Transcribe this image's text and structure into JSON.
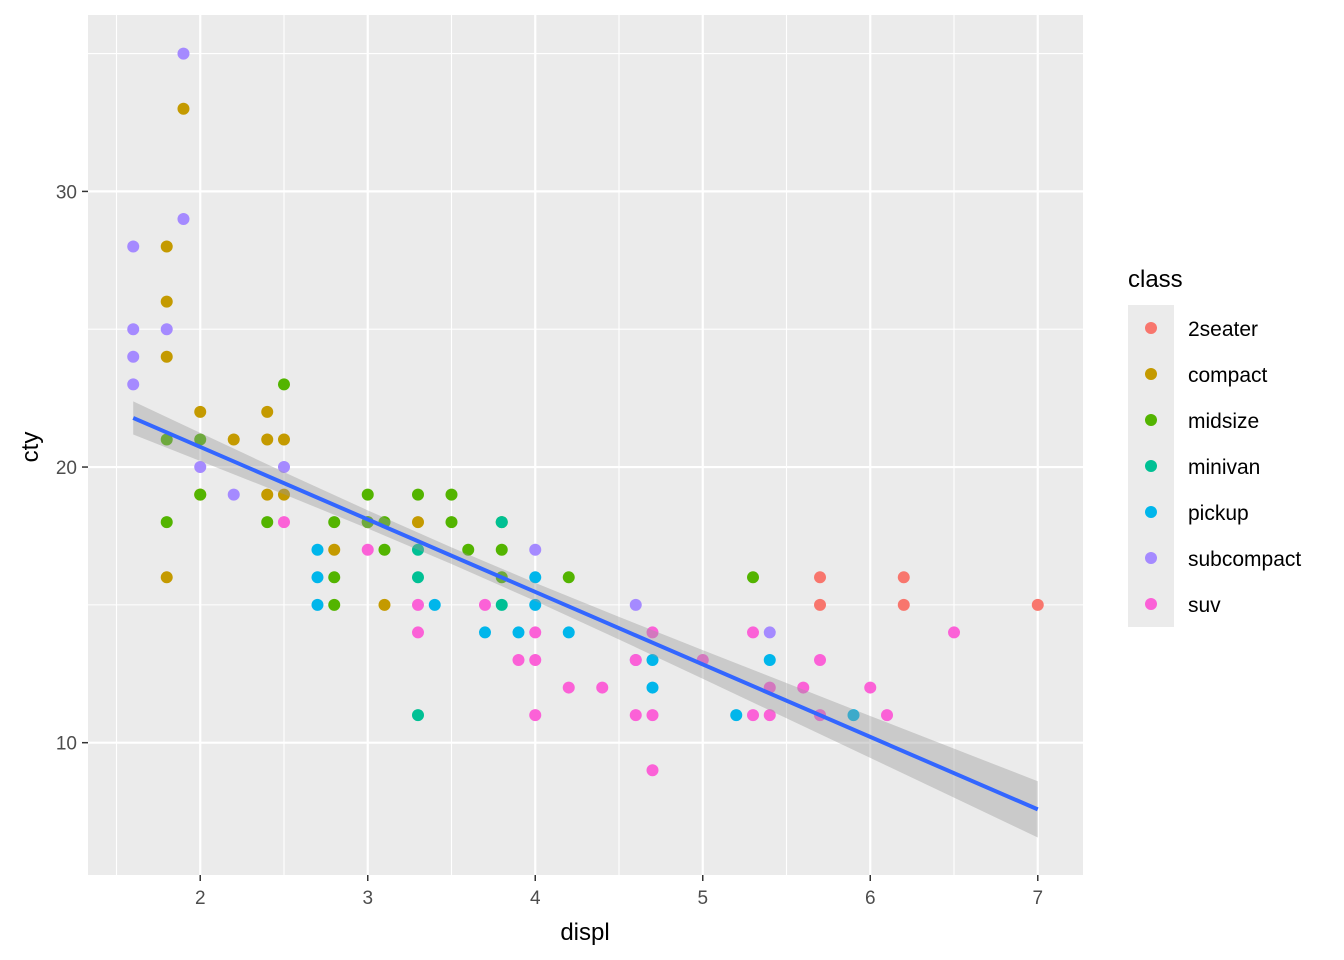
{
  "chart_data": {
    "type": "scatter",
    "title": "",
    "xlabel": "displ",
    "ylabel": "cty",
    "xlim": [
      1.33,
      7.27
    ],
    "ylim": [
      5.2,
      36.4
    ],
    "x_ticks": [
      2,
      3,
      4,
      5,
      6,
      7
    ],
    "y_ticks": [
      10,
      20,
      30
    ],
    "x_tick_labels": [
      "2",
      "3",
      "4",
      "5",
      "6",
      "7"
    ],
    "y_tick_labels": [
      "10",
      "20",
      "30"
    ],
    "grid": true,
    "legend": {
      "title": "class",
      "placement": "right"
    },
    "series": [
      {
        "name": "2seater",
        "color": "#F8766D",
        "points": [
          [
            5.7,
            16
          ],
          [
            5.7,
            15
          ],
          [
            6.2,
            16
          ],
          [
            6.2,
            15
          ],
          [
            7,
            15
          ]
        ]
      },
      {
        "name": "compact",
        "color": "#C49A00",
        "points": [
          [
            1.8,
            28
          ],
          [
            1.8,
            26
          ],
          [
            1.8,
            24
          ],
          [
            1.9,
            33
          ],
          [
            1.8,
            16
          ],
          [
            2,
            22
          ],
          [
            2,
            19
          ],
          [
            2.2,
            21
          ],
          [
            2.4,
            22
          ],
          [
            2.4,
            21
          ],
          [
            2.4,
            19
          ],
          [
            2.5,
            21
          ],
          [
            2.5,
            19
          ],
          [
            2.8,
            17
          ],
          [
            3,
            18
          ],
          [
            3.1,
            15
          ],
          [
            3.3,
            18
          ]
        ]
      },
      {
        "name": "midsize",
        "color": "#53B400",
        "points": [
          [
            1.8,
            21
          ],
          [
            1.8,
            18
          ],
          [
            2,
            21
          ],
          [
            2,
            19
          ],
          [
            2.4,
            18
          ],
          [
            2.5,
            23
          ],
          [
            2.8,
            18
          ],
          [
            2.8,
            16
          ],
          [
            2.8,
            15
          ],
          [
            3,
            19
          ],
          [
            3,
            18
          ],
          [
            3.1,
            18
          ],
          [
            3.1,
            17
          ],
          [
            3.3,
            19
          ],
          [
            3.5,
            19
          ],
          [
            3.5,
            18
          ],
          [
            3.6,
            17
          ],
          [
            3.8,
            18
          ],
          [
            3.8,
            17
          ],
          [
            3.8,
            16
          ],
          [
            4.2,
            16
          ],
          [
            5.3,
            16
          ]
        ]
      },
      {
        "name": "minivan",
        "color": "#00C094",
        "points": [
          [
            3.3,
            17
          ],
          [
            3.3,
            16
          ],
          [
            3.3,
            11
          ],
          [
            3.8,
            15
          ],
          [
            3.8,
            18
          ]
        ]
      },
      {
        "name": "pickup",
        "color": "#00B6EB",
        "points": [
          [
            2.7,
            17
          ],
          [
            2.7,
            16
          ],
          [
            2.7,
            15
          ],
          [
            3.4,
            15
          ],
          [
            3.7,
            14
          ],
          [
            3.9,
            14
          ],
          [
            4,
            16
          ],
          [
            4,
            15
          ],
          [
            4.2,
            14
          ],
          [
            4.7,
            13
          ],
          [
            4.7,
            12
          ],
          [
            5.2,
            11
          ],
          [
            5.4,
            13
          ],
          [
            5.9,
            11
          ]
        ]
      },
      {
        "name": "subcompact",
        "color": "#A58AFF",
        "points": [
          [
            1.6,
            28
          ],
          [
            1.6,
            25
          ],
          [
            1.6,
            24
          ],
          [
            1.6,
            23
          ],
          [
            1.8,
            25
          ],
          [
            1.9,
            35
          ],
          [
            1.9,
            29
          ],
          [
            2,
            20
          ],
          [
            2.2,
            19
          ],
          [
            2.5,
            20
          ],
          [
            4,
            17
          ],
          [
            4.6,
            15
          ],
          [
            4.6,
            13
          ],
          [
            5.4,
            14
          ]
        ]
      },
      {
        "name": "suv",
        "color": "#FB61D7",
        "points": [
          [
            2.5,
            18
          ],
          [
            3,
            17
          ],
          [
            3.3,
            15
          ],
          [
            3.3,
            14
          ],
          [
            3.7,
            15
          ],
          [
            3.9,
            13
          ],
          [
            4,
            14
          ],
          [
            4,
            13
          ],
          [
            4,
            11
          ],
          [
            4.2,
            12
          ],
          [
            4.4,
            12
          ],
          [
            4.6,
            13
          ],
          [
            4.6,
            11
          ],
          [
            4.7,
            14
          ],
          [
            4.7,
            11
          ],
          [
            4.7,
            9
          ],
          [
            5,
            13
          ],
          [
            5.3,
            14
          ],
          [
            5.3,
            11
          ],
          [
            5.4,
            12
          ],
          [
            5.4,
            11
          ],
          [
            5.6,
            12
          ],
          [
            5.7,
            13
          ],
          [
            5.7,
            11
          ],
          [
            6,
            12
          ],
          [
            6.1,
            11
          ],
          [
            6.5,
            14
          ]
        ]
      }
    ],
    "smooth": {
      "method": "lm",
      "color": "#3366FF",
      "intercept": 25.99,
      "slope": -2.63,
      "x_range": [
        1.6,
        7
      ],
      "ci_x": [
        1.6,
        2,
        2.5,
        3,
        3.5,
        4,
        4.5,
        5,
        5.5,
        6,
        6.5,
        7
      ],
      "ci_halfwidth": [
        0.6,
        0.51,
        0.4,
        0.33,
        0.3,
        0.33,
        0.41,
        0.52,
        0.64,
        0.76,
        0.89,
        1.02
      ]
    }
  }
}
